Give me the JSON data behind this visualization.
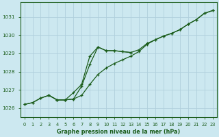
{
  "title": "Graphe pression niveau de la mer (hPa)",
  "background_color": "#cce8f0",
  "grid_color": "#b0d0dc",
  "line_color": "#1a5c1a",
  "xlim": [
    -0.5,
    23.5
  ],
  "ylim": [
    1025.5,
    1031.8
  ],
  "yticks": [
    1026,
    1027,
    1028,
    1029,
    1030,
    1031
  ],
  "xticks": [
    0,
    1,
    2,
    3,
    4,
    5,
    6,
    7,
    8,
    9,
    10,
    11,
    12,
    13,
    14,
    15,
    16,
    17,
    18,
    19,
    20,
    21,
    22,
    23
  ],
  "line_straight_x": [
    0,
    1,
    2,
    3,
    4,
    5,
    6,
    7,
    8,
    9,
    10,
    11,
    12,
    13,
    14,
    15,
    16,
    17,
    18,
    19,
    20,
    21,
    22,
    23
  ],
  "line_straight_y": [
    1026.2,
    1026.3,
    1026.55,
    1026.7,
    1026.45,
    1026.45,
    1026.5,
    1026.7,
    1027.3,
    1027.85,
    1028.2,
    1028.45,
    1028.65,
    1028.85,
    1029.1,
    1029.5,
    1029.75,
    1029.95,
    1030.1,
    1030.3,
    1030.6,
    1030.85,
    1031.2,
    1031.35
  ],
  "line_hump_x": [
    0,
    1,
    2,
    3,
    4,
    5,
    6,
    7,
    8,
    9,
    10,
    11,
    12,
    13,
    14,
    15,
    16,
    17,
    18,
    19,
    20,
    21,
    22,
    23
  ],
  "line_hump_y": [
    1026.2,
    1026.3,
    1026.55,
    1026.7,
    1026.45,
    1026.45,
    1026.5,
    1027.2,
    1028.4,
    1029.35,
    1029.15,
    1029.15,
    1029.1,
    1029.05,
    1029.2,
    1029.55,
    1029.75,
    1029.95,
    1030.1,
    1030.3,
    1030.6,
    1030.85,
    1031.2,
    1031.35
  ],
  "line_mid_x": [
    3,
    4,
    5,
    6,
    7,
    8,
    9,
    10,
    11,
    12,
    13
  ],
  "line_mid_y": [
    1026.7,
    1026.45,
    1026.45,
    1026.85,
    1027.3,
    1028.85,
    1029.35,
    1029.15,
    1029.15,
    1029.1,
    1029.05
  ]
}
